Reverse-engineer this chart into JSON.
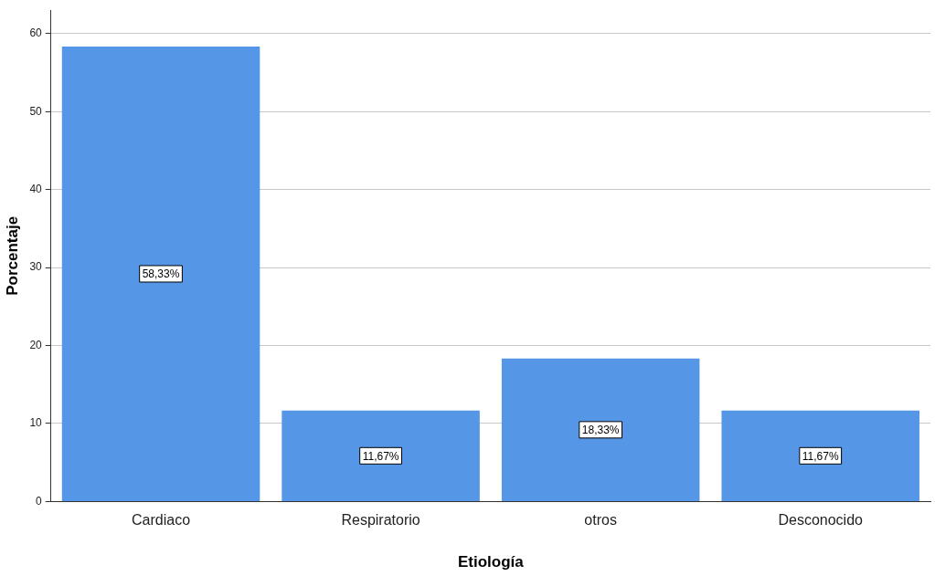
{
  "chart_data": {
    "type": "bar",
    "xlabel": "Etiología",
    "ylabel": "Porcentaje",
    "categories": [
      "Cardiaco",
      "Respiratorio",
      "otros",
      "Desconocido"
    ],
    "values": [
      58.33,
      11.67,
      18.33,
      11.67
    ],
    "value_labels": [
      "58,33%",
      "11,67%",
      "18,33%",
      "11,67%"
    ],
    "color": "#5596e6",
    "ylim": [
      0,
      63
    ],
    "yticks": [
      0,
      10,
      20,
      30,
      40,
      50,
      60
    ],
    "grid": "y",
    "legend": false
  }
}
